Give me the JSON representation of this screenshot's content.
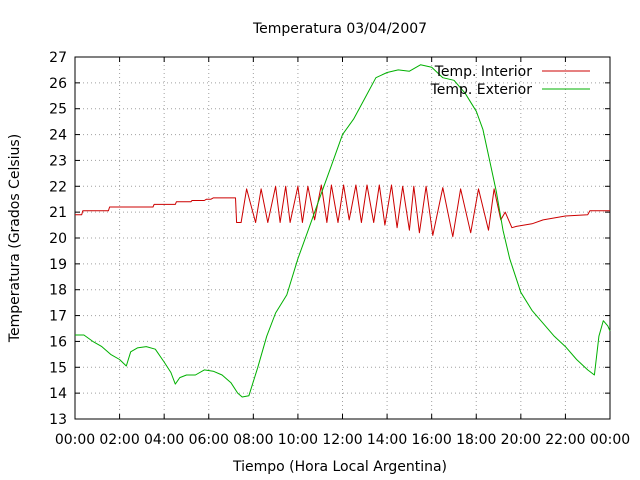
{
  "chart_data": {
    "type": "line",
    "title": "Temperatura 03/04/2007",
    "xlabel": "Tiempo (Hora Local Argentina)",
    "ylabel": "Temperatura (Grados Celsius)",
    "xlim": [
      0,
      24
    ],
    "ylim": [
      13,
      27
    ],
    "x_ticks": [
      "00:00",
      "02:00",
      "04:00",
      "06:00",
      "08:00",
      "10:00",
      "12:00",
      "14:00",
      "16:00",
      "18:00",
      "20:00",
      "22:00",
      "00:00"
    ],
    "y_ticks": [
      "13",
      "14",
      "15",
      "16",
      "17",
      "18",
      "19",
      "20",
      "21",
      "22",
      "23",
      "24",
      "25",
      "26",
      "27"
    ],
    "grid": true,
    "legend_position": "top-right",
    "series": [
      {
        "name": "Temp. Interior",
        "color": "#cc0000",
        "x": [
          0,
          0.3,
          0.35,
          1.5,
          1.55,
          3.5,
          3.55,
          4.5,
          4.55,
          5.2,
          5.25,
          5.8,
          5.9,
          6.1,
          6.2,
          7.2,
          7.25,
          7.45,
          7.7,
          8.1,
          8.35,
          8.65,
          9.0,
          9.2,
          9.45,
          9.65,
          10.0,
          10.2,
          10.45,
          10.75,
          11.05,
          11.3,
          11.5,
          11.8,
          12.05,
          12.3,
          12.6,
          12.85,
          13.1,
          13.4,
          13.65,
          13.9,
          14.2,
          14.45,
          14.7,
          15.0,
          15.2,
          15.45,
          15.75,
          16.05,
          16.5,
          16.95,
          17.3,
          17.75,
          18.1,
          18.55,
          18.8,
          19.1,
          19.3,
          19.6,
          19.8,
          20.5,
          21.0,
          22.0,
          23.0,
          23.1,
          24.0
        ],
        "values": [
          20.9,
          20.9,
          21.05,
          21.05,
          21.2,
          21.2,
          21.3,
          21.3,
          21.4,
          21.4,
          21.45,
          21.45,
          21.5,
          21.5,
          21.55,
          21.55,
          20.6,
          20.6,
          21.9,
          20.6,
          21.9,
          20.6,
          22.0,
          20.6,
          22.0,
          20.6,
          22.0,
          20.6,
          22.0,
          20.7,
          22.05,
          20.6,
          22.05,
          20.6,
          22.05,
          20.7,
          22.05,
          20.6,
          22.05,
          20.6,
          22.05,
          20.5,
          22.05,
          20.4,
          22.0,
          20.3,
          22.0,
          20.2,
          22.0,
          20.1,
          21.95,
          20.05,
          21.9,
          20.2,
          21.9,
          20.3,
          21.9,
          20.7,
          21.0,
          20.4,
          20.45,
          20.55,
          20.7,
          20.85,
          20.9,
          21.05,
          21.05
        ]
      },
      {
        "name": "Temp. Exterior",
        "color": "#00b000",
        "x": [
          0,
          0.4,
          0.8,
          1.2,
          1.6,
          2.0,
          2.3,
          2.5,
          2.8,
          3.2,
          3.6,
          4.0,
          4.3,
          4.5,
          4.7,
          5.0,
          5.4,
          5.8,
          6.2,
          6.6,
          7.0,
          7.3,
          7.5,
          7.8,
          8.2,
          8.6,
          9.0,
          9.5,
          10.0,
          10.5,
          11.0,
          11.5,
          12.0,
          12.5,
          13.0,
          13.5,
          14.0,
          14.5,
          15.0,
          15.5,
          16.0,
          16.5,
          17.0,
          17.5,
          18.0,
          18.3,
          18.6,
          18.9,
          19.2,
          19.5,
          20.0,
          20.5,
          21.0,
          21.5,
          22.0,
          22.5,
          23.0,
          23.3,
          23.5,
          23.7,
          23.9,
          24.0
        ],
        "values": [
          16.25,
          16.25,
          16.0,
          15.8,
          15.5,
          15.3,
          15.05,
          15.6,
          15.75,
          15.8,
          15.7,
          15.2,
          14.8,
          14.35,
          14.6,
          14.7,
          14.7,
          14.9,
          14.85,
          14.7,
          14.4,
          14.0,
          13.85,
          13.9,
          15.0,
          16.2,
          17.1,
          17.8,
          19.2,
          20.4,
          21.6,
          22.8,
          24.0,
          24.6,
          25.4,
          26.2,
          26.4,
          26.5,
          26.45,
          26.7,
          26.6,
          26.2,
          26.1,
          25.6,
          24.9,
          24.2,
          23.0,
          21.8,
          20.3,
          19.2,
          17.9,
          17.2,
          16.7,
          16.2,
          15.8,
          15.3,
          14.9,
          14.7,
          16.2,
          16.8,
          16.6,
          16.4
        ]
      }
    ]
  }
}
